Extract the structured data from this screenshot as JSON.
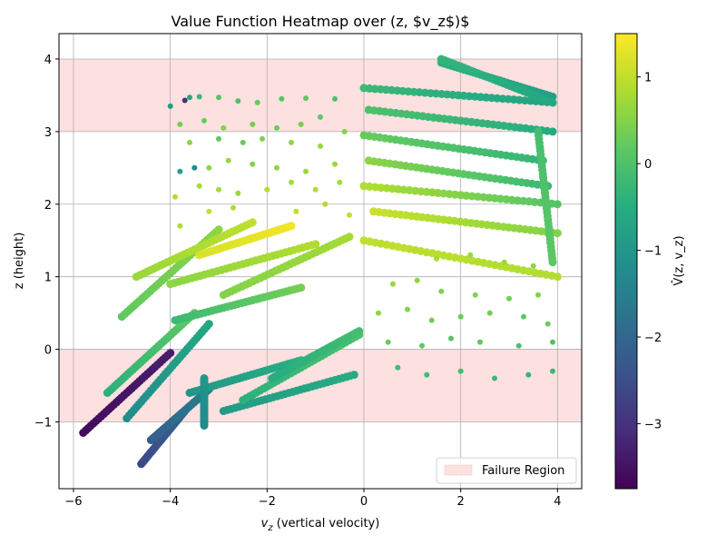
{
  "chart_data": {
    "type": "scatter",
    "title": "Value Function Heatmap over (z, $v_z$)$",
    "xlabel_base": "v",
    "xlabel_sub": "z",
    "xlabel_rest": " (vertical velocity)",
    "ylabel": "z (height)",
    "colorbar_label": "V̂(z, v_z)",
    "xlim": [
      -6.3,
      4.5
    ],
    "ylim": [
      -1.92,
      4.35
    ],
    "clim": [
      -3.75,
      1.5
    ],
    "x_ticks": [
      -6,
      -4,
      -2,
      0,
      2,
      4
    ],
    "x_tick_labels": [
      "−6",
      "−4",
      "−2",
      "0",
      "2",
      "4"
    ],
    "y_ticks": [
      -1,
      0,
      1,
      2,
      3,
      4
    ],
    "y_tick_labels": [
      "−1",
      "0",
      "1",
      "2",
      "3",
      "4"
    ],
    "colorbar_ticks": [
      1,
      0,
      -1,
      -2,
      -3
    ],
    "colorbar_tick_labels": [
      "1",
      "0",
      "−1",
      "−2",
      "−3"
    ],
    "colormap": "viridis",
    "grid": true,
    "legend": {
      "position": "lower-right",
      "label": "Failure Region",
      "color": "#fde0e0"
    },
    "failure_regions": [
      {
        "ymin": 3,
        "ymax": 4
      },
      {
        "ymin": -1,
        "ymax": 0
      }
    ],
    "trajectories": [
      {
        "x": [
          -5.8,
          -4.0
        ],
        "y": [
          -1.15,
          -0.05
        ],
        "v": [
          -3.6,
          -3.3
        ]
      },
      {
        "x": [
          -4.6,
          -3.7
        ],
        "y": [
          -1.58,
          -0.85
        ],
        "v": [
          -2.6,
          -2.1
        ]
      },
      {
        "x": [
          -4.4,
          -3.2
        ],
        "y": [
          -1.25,
          -0.55
        ],
        "v": [
          -2.2,
          -1.5
        ]
      },
      {
        "x": [
          -4.9,
          -3.2
        ],
        "y": [
          -0.95,
          0.35
        ],
        "v": [
          -1.2,
          -0.6
        ]
      },
      {
        "x": [
          -5.3,
          -3.5
        ],
        "y": [
          -0.6,
          0.5
        ],
        "v": [
          -0.4,
          0.2
        ]
      },
      {
        "x": [
          -5.0,
          -3.0
        ],
        "y": [
          0.45,
          1.65
        ],
        "v": [
          0.2,
          0.6
        ]
      },
      {
        "x": [
          -4.7,
          -2.3
        ],
        "y": [
          1.0,
          1.75
        ],
        "v": [
          0.7,
          1.0
        ]
      },
      {
        "x": [
          -3.4,
          -1.5
        ],
        "y": [
          1.3,
          1.7
        ],
        "v": [
          1.2,
          1.4
        ]
      },
      {
        "x": [
          -4.0,
          -1.0
        ],
        "y": [
          0.9,
          1.45
        ],
        "v": [
          0.6,
          0.9
        ]
      },
      {
        "x": [
          -2.9,
          -0.3
        ],
        "y": [
          0.75,
          1.55
        ],
        "v": [
          0.5,
          0.8
        ]
      },
      {
        "x": [
          -3.9,
          -1.3
        ],
        "y": [
          0.4,
          0.85
        ],
        "v": [
          -0.2,
          0.4
        ]
      },
      {
        "x": [
          -3.6,
          -1.3
        ],
        "y": [
          -0.6,
          -0.15
        ],
        "v": [
          -1.0,
          -0.4
        ]
      },
      {
        "x": [
          -2.9,
          -0.2
        ],
        "y": [
          -0.85,
          -0.35
        ],
        "v": [
          -0.9,
          -0.5
        ]
      },
      {
        "x": [
          -2.5,
          -0.1
        ],
        "y": [
          -0.7,
          0.2
        ],
        "v": [
          -0.4,
          0.0
        ]
      },
      {
        "x": [
          -3.3,
          -3.3
        ],
        "y": [
          -1.05,
          -0.4
        ],
        "v": [
          -1.3,
          -1.0
        ]
      },
      {
        "x": [
          -1.9,
          -0.1
        ],
        "y": [
          -0.4,
          0.25
        ],
        "v": [
          -0.5,
          -0.1
        ]
      },
      {
        "x": [
          0.0,
          4.0
        ],
        "y": [
          1.5,
          1.0
        ],
        "v": [
          1.0,
          0.9
        ]
      },
      {
        "x": [
          0.2,
          4.0
        ],
        "y": [
          1.9,
          1.6
        ],
        "v": [
          1.1,
          0.5
        ]
      },
      {
        "x": [
          0.0,
          4.0
        ],
        "y": [
          2.25,
          2.0
        ],
        "v": [
          0.9,
          0.1
        ]
      },
      {
        "x": [
          0.1,
          3.8
        ],
        "y": [
          2.6,
          2.25
        ],
        "v": [
          0.6,
          -0.2
        ]
      },
      {
        "x": [
          0.0,
          3.7
        ],
        "y": [
          2.95,
          2.6
        ],
        "v": [
          0.3,
          -0.3
        ]
      },
      {
        "x": [
          0.1,
          3.9
        ],
        "y": [
          3.3,
          3.0
        ],
        "v": [
          0.0,
          -0.5
        ]
      },
      {
        "x": [
          0.0,
          3.9
        ],
        "y": [
          3.6,
          3.4
        ],
        "v": [
          -0.2,
          -0.7
        ]
      },
      {
        "x": [
          1.6,
          3.9
        ],
        "y": [
          3.95,
          3.48
        ],
        "v": [
          -0.4,
          -0.8
        ]
      },
      {
        "x": [
          1.6,
          3.9
        ],
        "y": [
          4.0,
          3.4
        ],
        "v": [
          -0.3,
          -0.6
        ]
      },
      {
        "x": [
          3.6,
          3.9
        ],
        "y": [
          3.0,
          1.2
        ],
        "v": [
          -0.1,
          0.2
        ]
      }
    ],
    "scatter_points": [
      {
        "x": -3.7,
        "y": 3.43,
        "v": -3.0
      },
      {
        "x": -4.0,
        "y": 3.35,
        "v": -0.9
      },
      {
        "x": -3.6,
        "y": 3.47,
        "v": -0.6
      },
      {
        "x": -3.4,
        "y": 3.48,
        "v": -0.2
      },
      {
        "x": -3.0,
        "y": 3.47,
        "v": 0.1
      },
      {
        "x": -2.6,
        "y": 3.42,
        "v": 0.0
      },
      {
        "x": -2.2,
        "y": 3.4,
        "v": 0.3
      },
      {
        "x": -1.7,
        "y": 3.45,
        "v": 0.1
      },
      {
        "x": -1.2,
        "y": 3.46,
        "v": 0.2
      },
      {
        "x": -0.6,
        "y": 3.45,
        "v": 0.0
      },
      {
        "x": -3.8,
        "y": 3.1,
        "v": 0.4
      },
      {
        "x": -3.3,
        "y": 3.15,
        "v": 0.3
      },
      {
        "x": -2.9,
        "y": 3.05,
        "v": 0.5
      },
      {
        "x": -2.3,
        "y": 3.1,
        "v": 0.4
      },
      {
        "x": -1.8,
        "y": 3.05,
        "v": 0.3
      },
      {
        "x": -1.3,
        "y": 3.1,
        "v": 0.4
      },
      {
        "x": -0.9,
        "y": 3.2,
        "v": 0.2
      },
      {
        "x": -0.4,
        "y": 3.0,
        "v": 0.5
      },
      {
        "x": -3.6,
        "y": 2.85,
        "v": 0.6
      },
      {
        "x": -3.0,
        "y": 2.9,
        "v": 0.2
      },
      {
        "x": -2.5,
        "y": 2.85,
        "v": 0.3
      },
      {
        "x": -2.1,
        "y": 2.9,
        "v": 0.5
      },
      {
        "x": -1.5,
        "y": 2.85,
        "v": 0.6
      },
      {
        "x": -0.9,
        "y": 2.8,
        "v": 0.7
      },
      {
        "x": -3.8,
        "y": 2.45,
        "v": -0.8
      },
      {
        "x": -3.5,
        "y": 2.5,
        "v": -1.2
      },
      {
        "x": -3.2,
        "y": 2.5,
        "v": 0.6
      },
      {
        "x": -2.8,
        "y": 2.6,
        "v": 0.7
      },
      {
        "x": -2.3,
        "y": 2.55,
        "v": 0.5
      },
      {
        "x": -1.8,
        "y": 2.5,
        "v": 0.6
      },
      {
        "x": -1.2,
        "y": 2.45,
        "v": 0.7
      },
      {
        "x": -0.6,
        "y": 2.55,
        "v": 0.7
      },
      {
        "x": -3.9,
        "y": 2.1,
        "v": 0.9
      },
      {
        "x": -3.4,
        "y": 2.25,
        "v": 0.8
      },
      {
        "x": -3.0,
        "y": 2.2,
        "v": 0.8
      },
      {
        "x": -2.6,
        "y": 2.15,
        "v": 0.7
      },
      {
        "x": -2.0,
        "y": 2.2,
        "v": 0.9
      },
      {
        "x": -1.5,
        "y": 2.3,
        "v": 0.8
      },
      {
        "x": -1.0,
        "y": 2.2,
        "v": 0.9
      },
      {
        "x": -0.5,
        "y": 2.3,
        "v": 0.8
      },
      {
        "x": -3.8,
        "y": 1.7,
        "v": 0.9
      },
      {
        "x": -3.2,
        "y": 1.9,
        "v": 1.0
      },
      {
        "x": -2.7,
        "y": 1.95,
        "v": 0.9
      },
      {
        "x": -1.4,
        "y": 1.9,
        "v": 1.0
      },
      {
        "x": -0.8,
        "y": 2.0,
        "v": 0.9
      },
      {
        "x": -0.3,
        "y": 1.85,
        "v": 1.0
      },
      {
        "x": 0.6,
        "y": 0.9,
        "v": 0.7
      },
      {
        "x": 1.1,
        "y": 0.95,
        "v": 0.6
      },
      {
        "x": 1.6,
        "y": 0.8,
        "v": 0.5
      },
      {
        "x": 2.3,
        "y": 0.75,
        "v": 0.5
      },
      {
        "x": 3.0,
        "y": 0.7,
        "v": 0.4
      },
      {
        "x": 3.6,
        "y": 0.75,
        "v": 0.5
      },
      {
        "x": 0.3,
        "y": 0.5,
        "v": 0.6
      },
      {
        "x": 0.9,
        "y": 0.55,
        "v": 0.5
      },
      {
        "x": 1.4,
        "y": 0.4,
        "v": 0.4
      },
      {
        "x": 2.0,
        "y": 0.45,
        "v": 0.3
      },
      {
        "x": 2.6,
        "y": 0.5,
        "v": 0.4
      },
      {
        "x": 3.3,
        "y": 0.45,
        "v": 0.2
      },
      {
        "x": 3.8,
        "y": 0.35,
        "v": 0.3
      },
      {
        "x": 0.5,
        "y": 0.1,
        "v": 0.3
      },
      {
        "x": 1.2,
        "y": 0.05,
        "v": 0.2
      },
      {
        "x": 1.8,
        "y": 0.15,
        "v": 0.1
      },
      {
        "x": 2.4,
        "y": 0.1,
        "v": 0.2
      },
      {
        "x": 3.2,
        "y": 0.05,
        "v": 0.0
      },
      {
        "x": 3.9,
        "y": 0.1,
        "v": 0.1
      },
      {
        "x": 0.7,
        "y": -0.25,
        "v": -0.1
      },
      {
        "x": 1.3,
        "y": -0.35,
        "v": -0.2
      },
      {
        "x": 2.0,
        "y": -0.3,
        "v": -0.1
      },
      {
        "x": 2.7,
        "y": -0.4,
        "v": -0.2
      },
      {
        "x": 3.4,
        "y": -0.35,
        "v": -0.3
      },
      {
        "x": 3.9,
        "y": -0.3,
        "v": -0.2
      },
      {
        "x": 1.5,
        "y": 1.25,
        "v": 0.8
      },
      {
        "x": 2.2,
        "y": 1.3,
        "v": 0.7
      },
      {
        "x": 2.9,
        "y": 1.2,
        "v": 0.7
      },
      {
        "x": 3.5,
        "y": 1.15,
        "v": 0.6
      }
    ]
  }
}
